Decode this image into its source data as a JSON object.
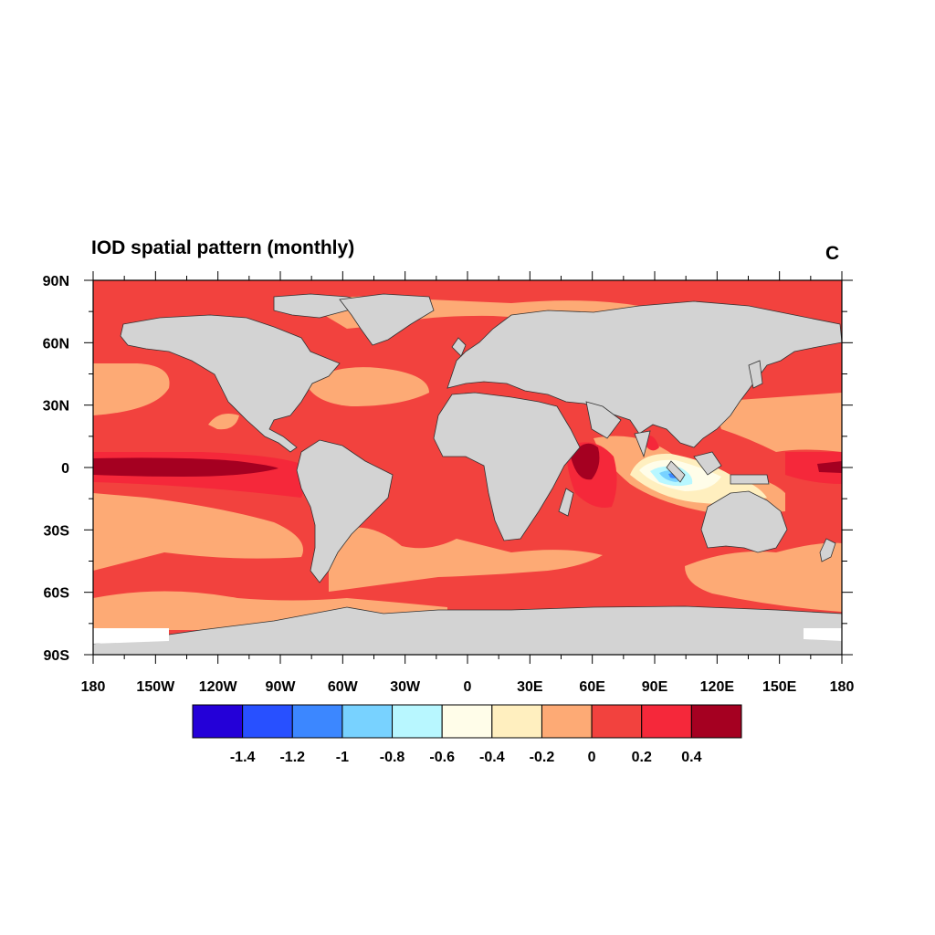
{
  "title": "IOD spatial pattern (monthly)",
  "panel_label": "C",
  "map": {
    "projection": "equirectangular",
    "lon_range": [
      -180,
      180
    ],
    "lat_range": [
      -90,
      90
    ],
    "lon_ticks": [
      {
        "value": -180,
        "label": "180"
      },
      {
        "value": -150,
        "label": "150W"
      },
      {
        "value": -120,
        "label": "120W"
      },
      {
        "value": -90,
        "label": "90W"
      },
      {
        "value": -60,
        "label": "60W"
      },
      {
        "value": -30,
        "label": "30W"
      },
      {
        "value": 0,
        "label": "0"
      },
      {
        "value": 30,
        "label": "30E"
      },
      {
        "value": 60,
        "label": "60E"
      },
      {
        "value": 90,
        "label": "90E"
      },
      {
        "value": 120,
        "label": "120E"
      },
      {
        "value": 150,
        "label": "150E"
      },
      {
        "value": 180,
        "label": "180"
      }
    ],
    "lat_ticks": [
      {
        "value": 90,
        "label": "90N"
      },
      {
        "value": 60,
        "label": "60N"
      },
      {
        "value": 30,
        "label": "30N"
      },
      {
        "value": 0,
        "label": "0"
      },
      {
        "value": -30,
        "label": "30S"
      },
      {
        "value": -60,
        "label": "60S"
      },
      {
        "value": -90,
        "label": "90S"
      }
    ],
    "land_color": "#d3d3d3",
    "ocean_base_color": "#f2423e"
  },
  "colorbar": {
    "colors": [
      "#2400d8",
      "#2850ff",
      "#3c87ff",
      "#78d2ff",
      "#b8f7ff",
      "#fffde9",
      "#ffefbf",
      "#fdaa75",
      "#f2423e",
      "#f5283a",
      "#a50021"
    ],
    "tick_labels": [
      "-1.4",
      "-1.2",
      "-1",
      "-0.8",
      "-0.6",
      "-0.4",
      "-0.2",
      "0",
      "0.2",
      "0.4"
    ]
  }
}
